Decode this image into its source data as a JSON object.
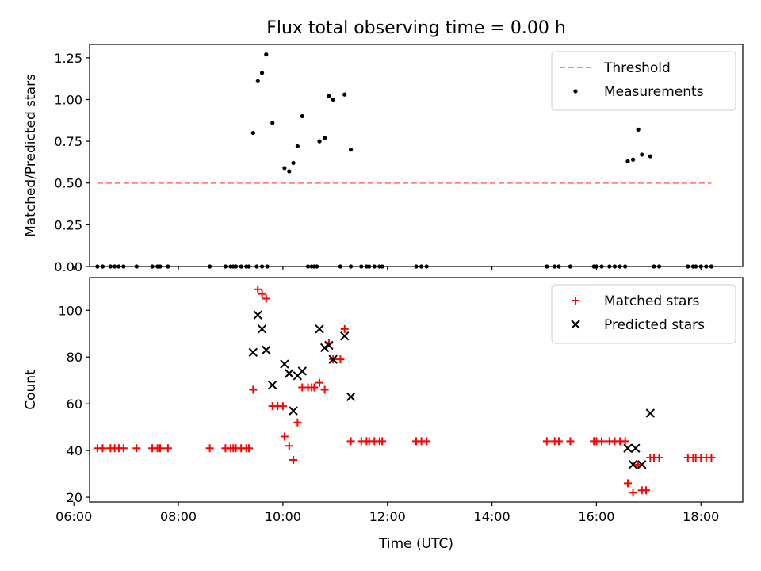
{
  "title": "Flux total observing time = 0.00 h",
  "chart_data": [
    {
      "type": "scatter",
      "ylabel": "Matched/Predicted stars",
      "xlabel": "",
      "xlim": [
        6.3,
        18.8
      ],
      "ylim": [
        0,
        1.33
      ],
      "x_ticks": [
        "06:00",
        "08:00",
        "10:00",
        "12:00",
        "14:00",
        "16:00",
        "18:00"
      ],
      "x_tick_values": [
        6,
        8,
        10,
        12,
        14,
        16,
        18
      ],
      "y_ticks": [
        "0.00",
        "0.25",
        "0.50",
        "0.75",
        "1.00",
        "1.25"
      ],
      "y_tick_values": [
        0,
        0.25,
        0.5,
        0.75,
        1.0,
        1.25
      ],
      "legend_position": "top-right",
      "threshold": {
        "name": "Threshold",
        "value": 0.5,
        "x_range": [
          6.45,
          18.2
        ],
        "color": "#ff8080"
      },
      "series": [
        {
          "name": "Measurements",
          "color": "#000000",
          "points": [
            [
              9.43,
              0.8
            ],
            [
              9.52,
              1.11
            ],
            [
              9.6,
              1.16
            ],
            [
              9.68,
              1.27
            ],
            [
              9.8,
              0.86
            ],
            [
              10.03,
              0.59
            ],
            [
              10.12,
              0.57
            ],
            [
              10.2,
              0.62
            ],
            [
              10.28,
              0.72
            ],
            [
              10.37,
              0.9
            ],
            [
              10.7,
              0.75
            ],
            [
              10.8,
              0.77
            ],
            [
              10.88,
              1.02
            ],
            [
              10.96,
              1.0
            ],
            [
              11.18,
              1.03
            ],
            [
              11.3,
              0.7
            ],
            [
              16.6,
              0.63
            ],
            [
              16.7,
              0.64
            ],
            [
              16.8,
              0.82
            ],
            [
              16.87,
              0.67
            ],
            [
              17.03,
              0.66
            ],
            [
              6.45,
              0
            ],
            [
              6.55,
              0
            ],
            [
              6.7,
              0
            ],
            [
              6.78,
              0
            ],
            [
              6.86,
              0
            ],
            [
              6.95,
              0
            ],
            [
              7.2,
              0
            ],
            [
              7.5,
              0
            ],
            [
              7.6,
              0
            ],
            [
              7.65,
              0
            ],
            [
              7.8,
              0
            ],
            [
              8.6,
              0
            ],
            [
              8.9,
              0
            ],
            [
              9.0,
              0
            ],
            [
              9.05,
              0
            ],
            [
              9.1,
              0
            ],
            [
              9.2,
              0
            ],
            [
              9.3,
              0
            ],
            [
              9.35,
              0
            ],
            [
              9.5,
              0
            ],
            [
              9.6,
              0
            ],
            [
              9.7,
              0
            ],
            [
              10.48,
              0
            ],
            [
              10.55,
              0
            ],
            [
              10.6,
              0
            ],
            [
              10.65,
              0
            ],
            [
              11.1,
              0
            ],
            [
              11.3,
              0
            ],
            [
              11.5,
              0
            ],
            [
              11.6,
              0
            ],
            [
              11.65,
              0
            ],
            [
              11.75,
              0
            ],
            [
              11.85,
              0
            ],
            [
              11.9,
              0
            ],
            [
              12.55,
              0
            ],
            [
              12.65,
              0
            ],
            [
              12.75,
              0
            ],
            [
              15.05,
              0
            ],
            [
              15.2,
              0
            ],
            [
              15.28,
              0
            ],
            [
              15.5,
              0
            ],
            [
              15.95,
              0
            ],
            [
              16.0,
              0
            ],
            [
              16.1,
              0
            ],
            [
              16.25,
              0
            ],
            [
              16.35,
              0
            ],
            [
              16.45,
              0
            ],
            [
              16.55,
              0
            ],
            [
              17.1,
              0
            ],
            [
              17.2,
              0
            ],
            [
              17.75,
              0
            ],
            [
              17.85,
              0
            ],
            [
              17.9,
              0
            ],
            [
              18.0,
              0
            ],
            [
              18.1,
              0
            ],
            [
              18.2,
              0
            ]
          ]
        }
      ]
    },
    {
      "type": "scatter",
      "ylabel": "Count",
      "xlabel": "Time (UTC)",
      "xlim": [
        6.3,
        18.8
      ],
      "ylim": [
        18,
        114
      ],
      "x_ticks": [
        "06:00",
        "08:00",
        "10:00",
        "12:00",
        "14:00",
        "16:00",
        "18:00"
      ],
      "x_tick_values": [
        6,
        8,
        10,
        12,
        14,
        16,
        18
      ],
      "y_ticks": [
        "20",
        "40",
        "60",
        "80",
        "100"
      ],
      "y_tick_values": [
        20,
        40,
        60,
        80,
        100
      ],
      "legend_position": "top-right",
      "series": [
        {
          "name": "Matched stars",
          "marker": "plus",
          "color": "#ff0000",
          "points": [
            [
              6.45,
              41
            ],
            [
              6.55,
              41
            ],
            [
              6.7,
              41
            ],
            [
              6.78,
              41
            ],
            [
              6.86,
              41
            ],
            [
              6.95,
              41
            ],
            [
              7.2,
              41
            ],
            [
              7.5,
              41
            ],
            [
              7.6,
              41
            ],
            [
              7.65,
              41
            ],
            [
              7.8,
              41
            ],
            [
              8.6,
              41
            ],
            [
              8.9,
              41
            ],
            [
              9.0,
              41
            ],
            [
              9.05,
              41
            ],
            [
              9.1,
              41
            ],
            [
              9.2,
              41
            ],
            [
              9.3,
              41
            ],
            [
              9.35,
              41
            ],
            [
              9.43,
              66
            ],
            [
              9.52,
              109
            ],
            [
              9.6,
              107
            ],
            [
              9.68,
              105
            ],
            [
              9.8,
              59
            ],
            [
              9.9,
              59
            ],
            [
              10.0,
              59
            ],
            [
              10.03,
              46
            ],
            [
              10.12,
              42
            ],
            [
              10.2,
              36
            ],
            [
              10.28,
              52
            ],
            [
              10.37,
              67
            ],
            [
              10.48,
              67
            ],
            [
              10.55,
              67
            ],
            [
              10.6,
              67
            ],
            [
              10.7,
              69
            ],
            [
              10.8,
              66
            ],
            [
              10.88,
              86
            ],
            [
              10.96,
              79
            ],
            [
              11.1,
              79
            ],
            [
              11.18,
              92
            ],
            [
              11.3,
              44
            ],
            [
              11.5,
              44
            ],
            [
              11.6,
              44
            ],
            [
              11.65,
              44
            ],
            [
              11.75,
              44
            ],
            [
              11.85,
              44
            ],
            [
              11.9,
              44
            ],
            [
              12.55,
              44
            ],
            [
              12.65,
              44
            ],
            [
              12.75,
              44
            ],
            [
              15.05,
              44
            ],
            [
              15.2,
              44
            ],
            [
              15.28,
              44
            ],
            [
              15.5,
              44
            ],
            [
              15.95,
              44
            ],
            [
              16.0,
              44
            ],
            [
              16.1,
              44
            ],
            [
              16.25,
              44
            ],
            [
              16.35,
              44
            ],
            [
              16.45,
              44
            ],
            [
              16.55,
              44
            ],
            [
              16.6,
              26
            ],
            [
              16.7,
              22
            ],
            [
              16.8,
              34
            ],
            [
              16.87,
              23
            ],
            [
              16.95,
              23
            ],
            [
              17.03,
              37
            ],
            [
              17.1,
              37
            ],
            [
              17.2,
              37
            ],
            [
              17.75,
              37
            ],
            [
              17.85,
              37
            ],
            [
              17.9,
              37
            ],
            [
              18.0,
              37
            ],
            [
              18.1,
              37
            ],
            [
              18.2,
              37
            ]
          ]
        },
        {
          "name": "Predicted stars",
          "marker": "x",
          "color": "#000000",
          "points": [
            [
              9.43,
              82
            ],
            [
              9.52,
              98
            ],
            [
              9.6,
              92
            ],
            [
              9.68,
              83
            ],
            [
              9.8,
              68
            ],
            [
              10.03,
              77
            ],
            [
              10.12,
              73
            ],
            [
              10.2,
              57
            ],
            [
              10.28,
              72
            ],
            [
              10.37,
              74
            ],
            [
              10.7,
              92
            ],
            [
              10.8,
              84
            ],
            [
              10.88,
              85
            ],
            [
              10.96,
              79
            ],
            [
              11.18,
              89
            ],
            [
              11.3,
              63
            ],
            [
              16.6,
              41
            ],
            [
              16.7,
              34
            ],
            [
              16.75,
              41
            ],
            [
              16.87,
              34
            ],
            [
              17.03,
              56
            ]
          ]
        }
      ]
    }
  ]
}
